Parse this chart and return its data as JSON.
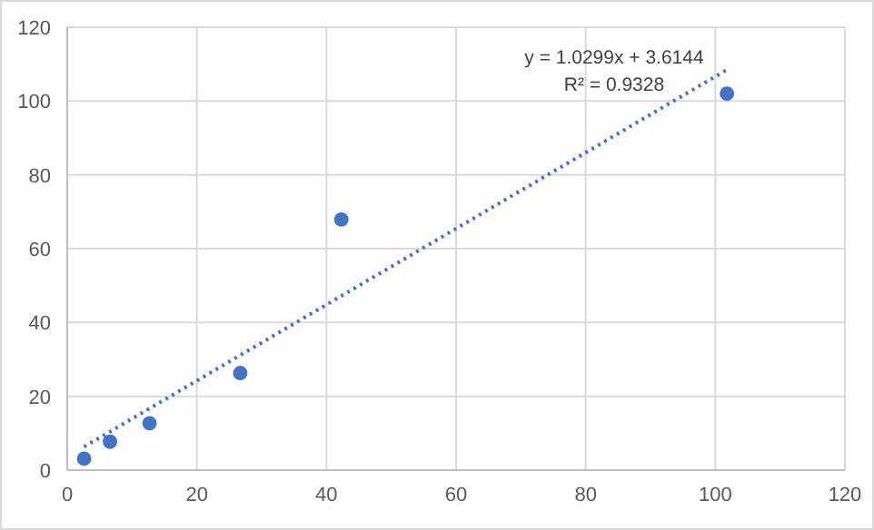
{
  "chart_data": {
    "type": "scatter",
    "xlim": [
      0,
      120
    ],
    "ylim": [
      0,
      120
    ],
    "xticks": [
      0,
      20,
      40,
      60,
      80,
      100,
      120
    ],
    "yticks": [
      0,
      20,
      40,
      60,
      80,
      100,
      120
    ],
    "grid": true,
    "marker": "circle",
    "series": [
      {
        "color": "#4472c4",
        "x": [
          2.6,
          6.6,
          12.7,
          26.7,
          42.3,
          101.8
        ],
        "values": [
          3.1,
          7.7,
          12.7,
          26.3,
          67.9,
          102
        ]
      },
      {
        "type": "line",
        "color": "#4472c4",
        "line_style": "dotted",
        "marker": "none",
        "x": [
          2.6,
          101.8
        ],
        "values": [
          6.3,
          108.5
        ]
      }
    ],
    "annotations": [
      "y = 1.0299x + 3.6144",
      "R² = 0.9328"
    ]
  }
}
